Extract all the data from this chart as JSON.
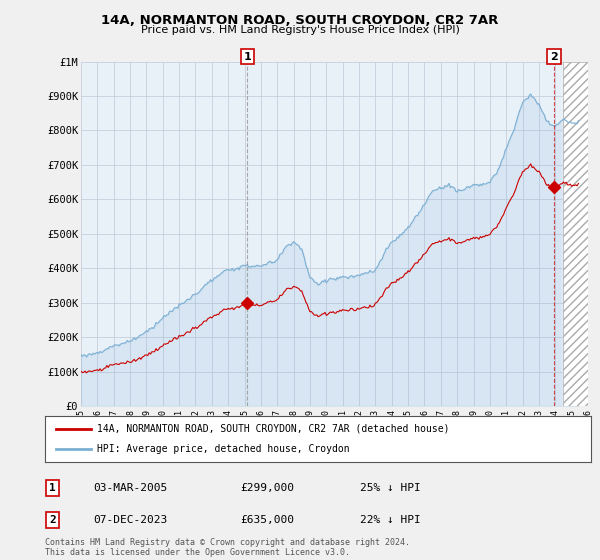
{
  "title": "14A, NORMANTON ROAD, SOUTH CROYDON, CR2 7AR",
  "subtitle": "Price paid vs. HM Land Registry's House Price Index (HPI)",
  "sale1_date": "03-MAR-2005",
  "sale1_price": "£299,000",
  "sale1_hpi": "25% ↓ HPI",
  "sale2_date": "07-DEC-2023",
  "sale2_price": "£635,000",
  "sale2_hpi": "22% ↓ HPI",
  "legend_line1": "14A, NORMANTON ROAD, SOUTH CROYDON, CR2 7AR (detached house)",
  "legend_line2": "HPI: Average price, detached house, Croydon",
  "footer": "Contains HM Land Registry data © Crown copyright and database right 2024.\nThis data is licensed under the Open Government Licence v3.0.",
  "price_line_color": "#cc0000",
  "hpi_line_color": "#7bafd4",
  "hpi_fill_color": "#ddeeff",
  "background_color": "#f0f0f0",
  "plot_bg_color": "#e8f0f8",
  "grid_color": "#c0c8d8",
  "ylim": [
    0,
    1000000
  ],
  "yticks": [
    0,
    100000,
    200000,
    300000,
    400000,
    500000,
    600000,
    700000,
    800000,
    900000,
    1000000
  ],
  "ytick_labels": [
    "£0",
    "£100K",
    "£200K",
    "£300K",
    "£400K",
    "£500K",
    "£600K",
    "£700K",
    "£800K",
    "£900K",
    "£1M"
  ],
  "sale1_x": 2005.17,
  "sale2_x": 2023.92,
  "sale1_y": 299000,
  "sale2_y": 635000,
  "xmin": 1995,
  "xmax": 2026
}
